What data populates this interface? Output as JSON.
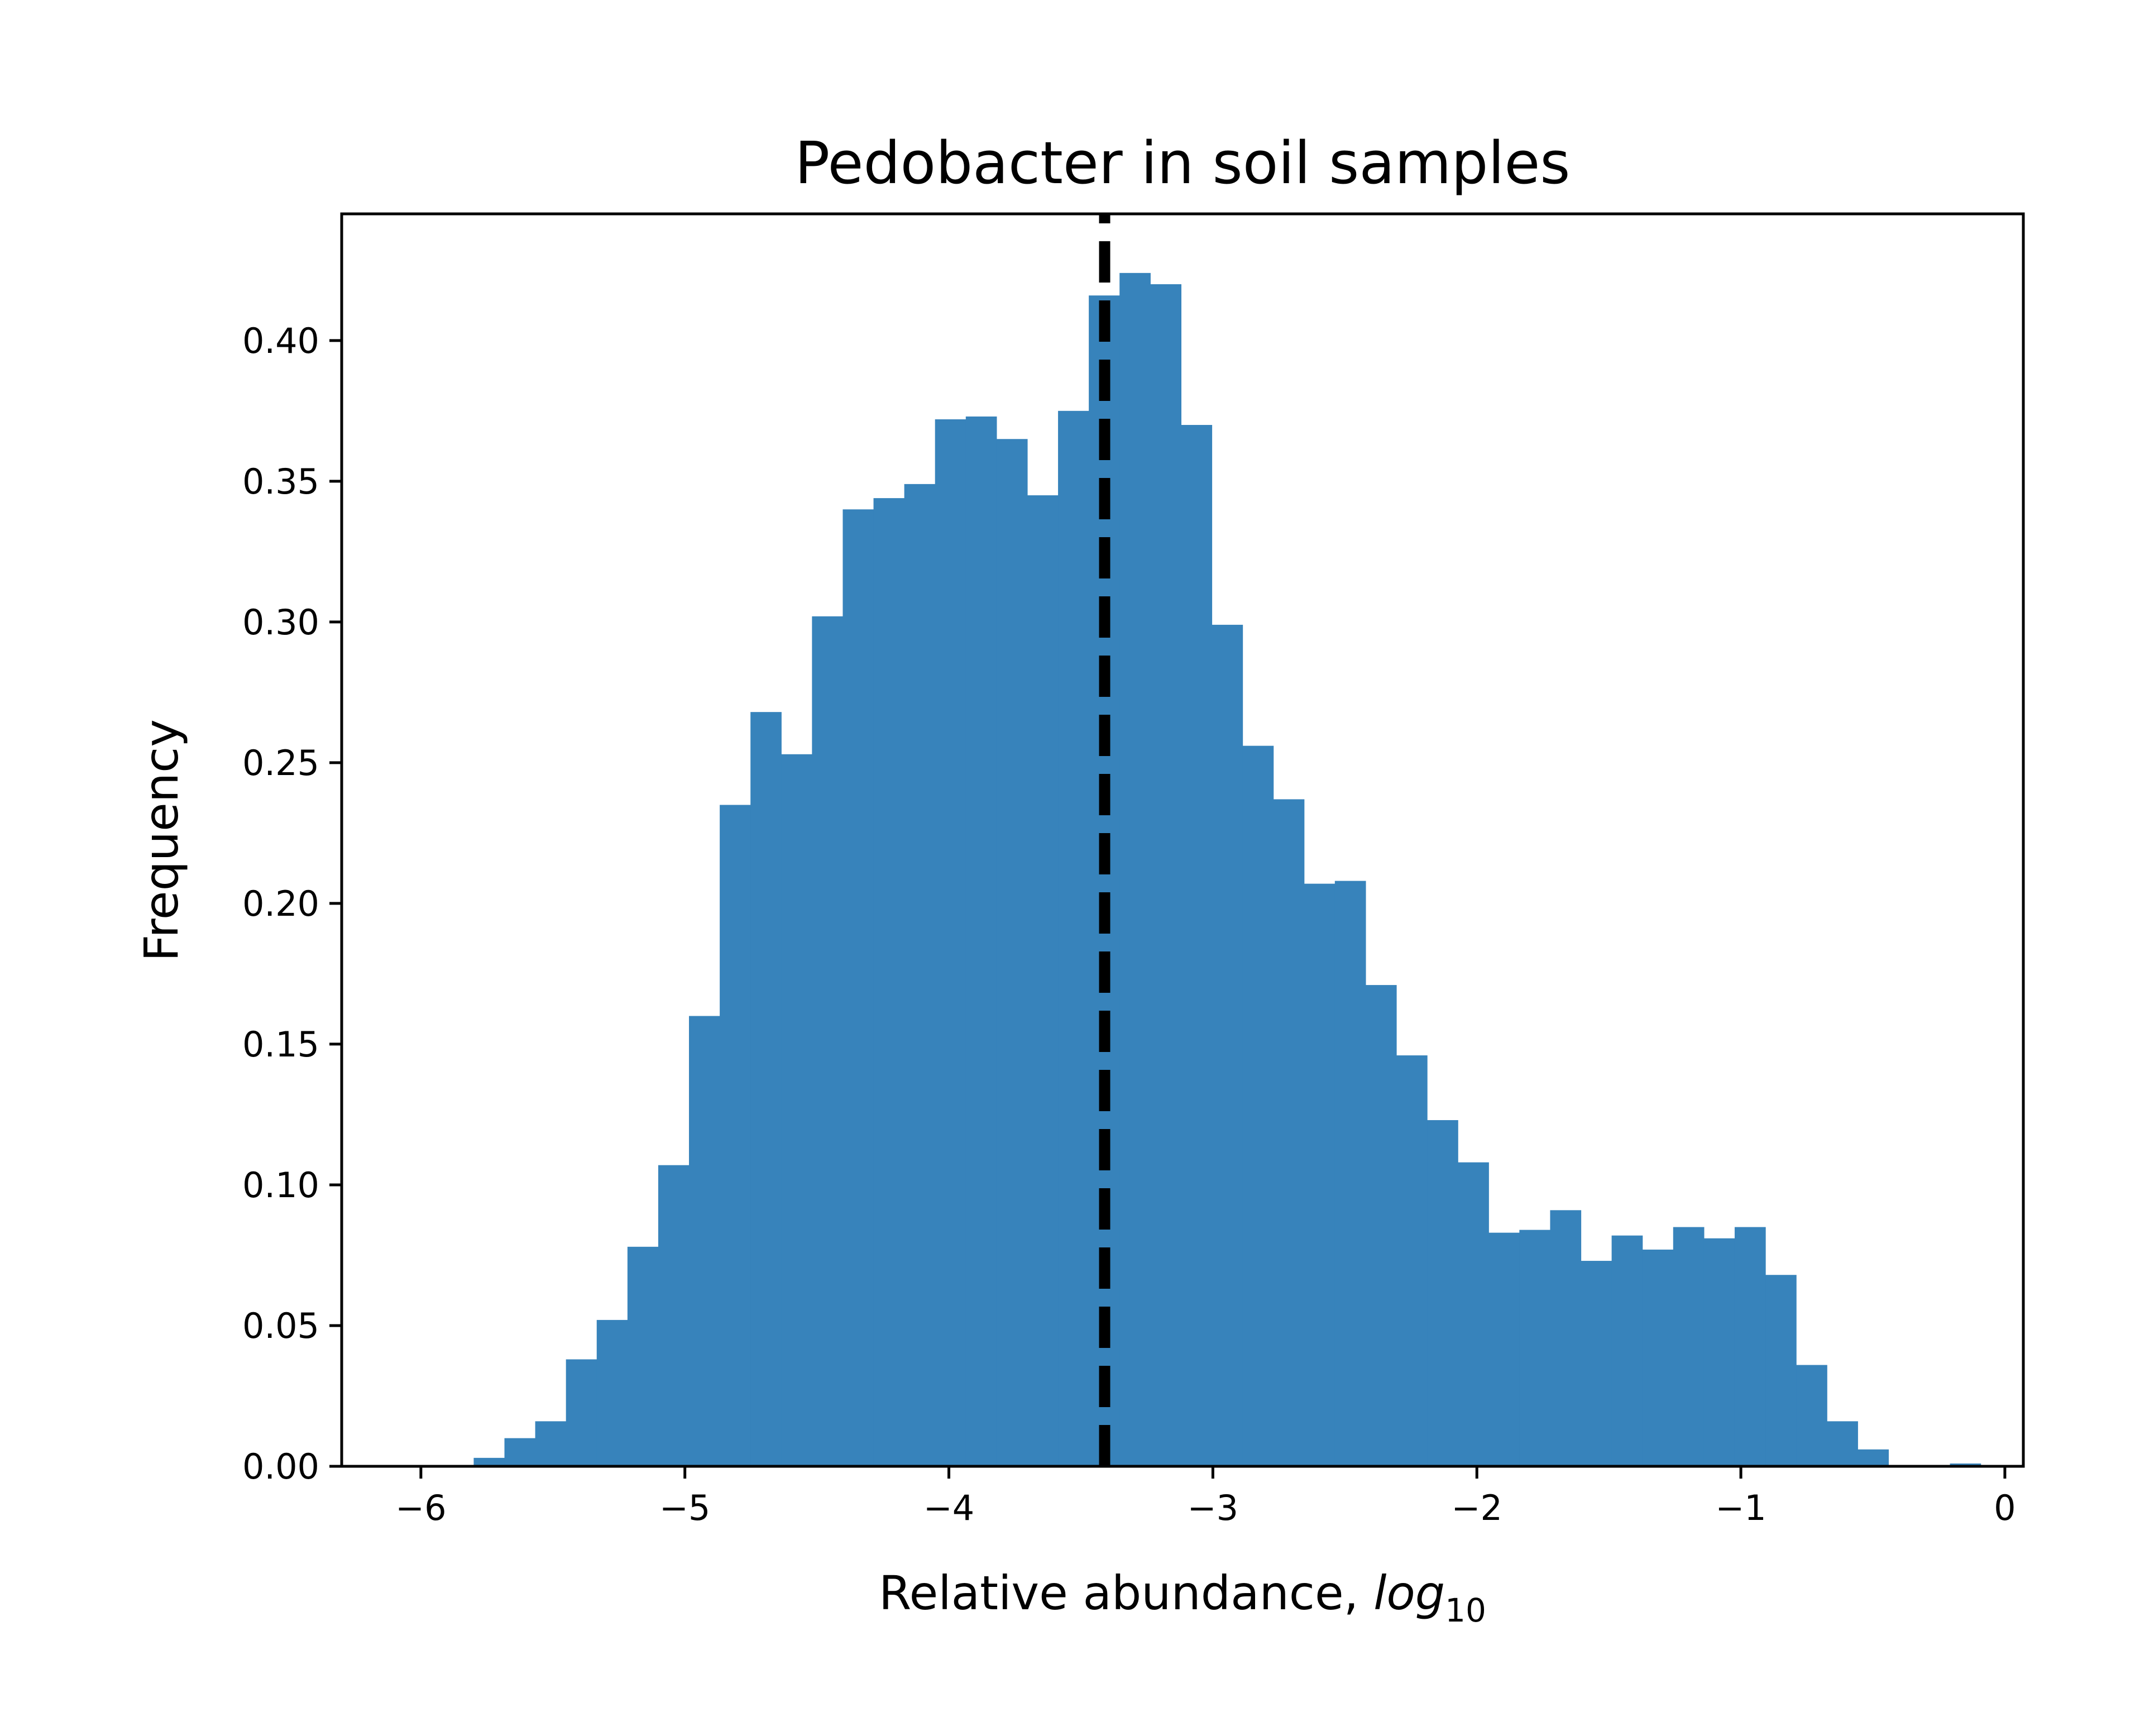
{
  "chart_data": {
    "type": "bar",
    "title": "Pedobacter in soil samples",
    "xlabel": "Relative abundance, ",
    "xlabel_italic": "log",
    "xlabel_sub": "10",
    "ylabel": "Frequency",
    "xlim": [
      -6.3,
      0.07
    ],
    "ylim": [
      0,
      0.445
    ],
    "xticks": [
      -6,
      -5,
      -4,
      -3,
      -2,
      -1,
      0
    ],
    "xtick_labels": [
      "−6",
      "−5",
      "−4",
      "−3",
      "−2",
      "−1",
      "0"
    ],
    "yticks": [
      0,
      0.05,
      0.1,
      0.15,
      0.2,
      0.25,
      0.3,
      0.35,
      0.4
    ],
    "ytick_labels": [
      "0.00",
      "0.05",
      "0.10",
      "0.15",
      "0.20",
      "0.25",
      "0.30",
      "0.35",
      "0.40"
    ],
    "bin_start": -5.8,
    "bin_width": 0.1165,
    "values": [
      0.003,
      0.01,
      0.016,
      0.038,
      0.052,
      0.078,
      0.107,
      0.16,
      0.235,
      0.268,
      0.253,
      0.302,
      0.34,
      0.344,
      0.349,
      0.372,
      0.373,
      0.365,
      0.345,
      0.375,
      0.416,
      0.424,
      0.42,
      0.37,
      0.299,
      0.256,
      0.237,
      0.207,
      0.208,
      0.171,
      0.146,
      0.123,
      0.108,
      0.083,
      0.084,
      0.091,
      0.073,
      0.082,
      0.077,
      0.085,
      0.081,
      0.085,
      0.068,
      0.036,
      0.016,
      0.006,
      0.0,
      0.0,
      0.001
    ],
    "bar_color": "#3783bb",
    "median_line": {
      "x": -3.41,
      "color": "#000000",
      "style": "dashed"
    },
    "grid": false,
    "legend": "none"
  }
}
